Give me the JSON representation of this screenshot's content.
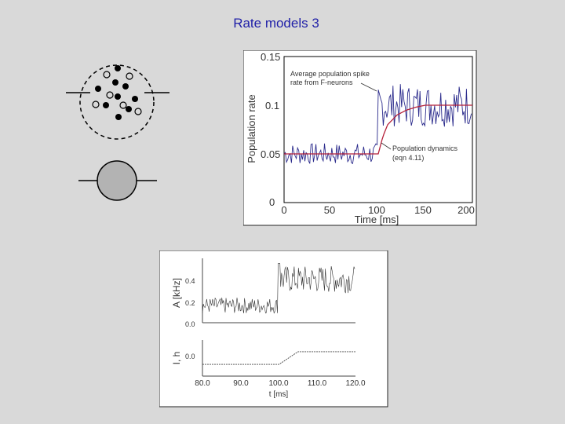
{
  "slide": {
    "title": "Rate models 3",
    "title_color": "#1f1fa8",
    "background": "#d9d9d9"
  },
  "schematic": {
    "top_element": "population of spiking neurons (filled and open circles in dashed boundary)",
    "bottom_element": "single rate unit (grey filled circle)",
    "unit_fill": "#b3b3b3"
  },
  "chart_data": [
    {
      "type": "line",
      "xlabel": "Time [ms]",
      "ylabel": "Population rate",
      "xlim": [
        0,
        200
      ],
      "ylim": [
        0,
        0.15
      ],
      "x_ticks": [
        "0",
        "50",
        "100",
        "150",
        "200"
      ],
      "y_ticks": [
        "0",
        "0.05",
        "0.1",
        "0.15"
      ],
      "series": [
        {
          "name": "Average population spike rate from  F-neurons",
          "color": "#2b2b8c",
          "style": "noisy",
          "x": [
            0,
            100,
            100,
            200
          ],
          "values": [
            0.05,
            0.05,
            0.1,
            0.1
          ]
        },
        {
          "name": "Population dynamics (eqn 4.11)",
          "color": "#b5213a",
          "style": "smooth",
          "x": [
            0,
            100,
            105,
            110,
            120,
            130,
            140,
            150,
            200
          ],
          "values": [
            0.05,
            0.05,
            0.068,
            0.08,
            0.09,
            0.095,
            0.098,
            0.1,
            0.1
          ]
        }
      ],
      "annotations": [
        {
          "lines": [
            "Average population spike",
            "rate from  F-neurons"
          ]
        },
        {
          "lines": [
            "Population dynamics",
            "(eqn 4.11)"
          ]
        }
      ]
    },
    {
      "type": "line",
      "panels": [
        {
          "ylabel": "A [kHz]",
          "y_ticks": [
            "0.0",
            "0.2",
            "0.4"
          ],
          "ylim": [
            0,
            0.55
          ],
          "series": [
            {
              "name": "",
              "x": [
                80,
                100,
                100,
                120
              ],
              "values": [
                0.15,
                0.15,
                0.38,
                0.38
              ]
            }
          ]
        },
        {
          "ylabel": "I, h",
          "y_ticks": [
            "0.0"
          ],
          "series": [
            {
              "name": "",
              "x": [
                80,
                100,
                105,
                120
              ],
              "values": [
                -0.1,
                -0.1,
                0.05,
                0.05
              ]
            }
          ]
        }
      ],
      "xlabel": "t [ms]",
      "xlim": [
        80,
        120
      ],
      "x_ticks": [
        "80.0",
        "90.0",
        "100.0",
        "110.0",
        "120.0"
      ]
    }
  ]
}
